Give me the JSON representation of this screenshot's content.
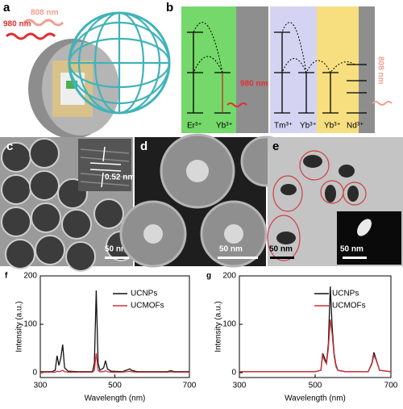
{
  "panel_labels": [
    "a",
    "b",
    "c",
    "d",
    "e"
  ],
  "panel_a": {
    "lasers": [
      "980 nm",
      "808 nm"
    ]
  },
  "panel_b": {
    "ions": [
      "Er³⁺",
      "Yb³⁺",
      "Tm³⁺",
      "Yb³⁺",
      "Yb³⁺",
      "Nd³⁺"
    ],
    "lasers": [
      "980 nm",
      "808 nm"
    ]
  },
  "panel_c": {
    "lattice_spacing": "0.52 nm",
    "scale_bar": "50 nm"
  },
  "panel_d": {
    "scale_bar": "50 nm"
  },
  "panel_e": {
    "scale_bar": "50 nm",
    "inset_scale_bar": "50 nm"
  },
  "chart_data": [
    {
      "type": "line",
      "panel": "f",
      "xlabel": "Wavelength (nm)",
      "ylabel": "Intensity (a.u.)",
      "x": [
        300,
        330,
        340,
        345,
        350,
        355,
        360,
        365,
        375,
        400,
        440,
        445,
        450,
        455,
        460,
        470,
        475,
        480,
        490,
        520,
        540,
        545,
        560,
        640,
        650,
        660,
        700
      ],
      "series": [
        {
          "name": "UCNPs",
          "color": "#111111",
          "values": [
            2,
            2,
            5,
            35,
            15,
            30,
            58,
            10,
            3,
            2,
            2,
            20,
            170,
            20,
            5,
            10,
            25,
            8,
            3,
            2,
            8,
            5,
            2,
            2,
            4,
            2,
            2
          ]
        },
        {
          "name": "UCMOFs",
          "color": "#d0303a",
          "values": [
            1,
            1,
            1,
            3,
            2,
            3,
            5,
            2,
            1,
            1,
            1,
            5,
            40,
            5,
            2,
            2,
            4,
            2,
            1,
            1,
            3,
            2,
            1,
            1,
            2,
            1,
            1
          ]
        }
      ],
      "xlim": [
        300,
        700
      ],
      "ylim": [
        -10,
        200
      ],
      "xticks": [
        300,
        500,
        700
      ],
      "yticks": [
        0,
        100,
        200
      ],
      "legend": "upper right"
    },
    {
      "type": "line",
      "panel": "g",
      "xlabel": "Wavelength (nm)",
      "ylabel": "Intensity (a.u.)",
      "x": [
        300,
        500,
        515,
        520,
        525,
        530,
        535,
        540,
        545,
        550,
        555,
        560,
        580,
        640,
        650,
        655,
        660,
        670,
        700
      ],
      "series": [
        {
          "name": "UCNPs",
          "color": "#111111",
          "values": [
            2,
            2,
            5,
            40,
            30,
            20,
            60,
            178,
            95,
            40,
            15,
            5,
            2,
            2,
            20,
            42,
            30,
            5,
            2
          ]
        },
        {
          "name": "UCMOFs",
          "color": "#d0303a",
          "values": [
            2,
            2,
            5,
            35,
            25,
            18,
            50,
            110,
            80,
            35,
            12,
            5,
            2,
            2,
            18,
            36,
            28,
            5,
            2
          ]
        }
      ],
      "xlim": [
        300,
        700
      ],
      "ylim": [
        -10,
        200
      ],
      "xticks": [
        300,
        500,
        700
      ],
      "yticks": [
        0,
        100,
        200
      ],
      "legend": "upper right"
    }
  ]
}
